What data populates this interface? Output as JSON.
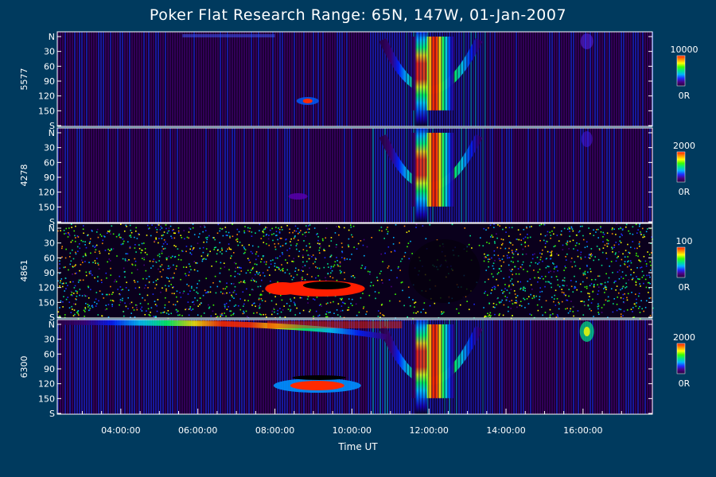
{
  "title": "Poker Flat Research Range: 65N, 147W, 01-Jan-2007",
  "colors": {
    "background": "#003a5e",
    "frame": "#ffffff",
    "text": "#ffffff",
    "colormap": [
      "#22003a",
      "#4b0082",
      "#1e2cff",
      "#00b4ff",
      "#00e68c",
      "#3cff00",
      "#ffff00",
      "#ff8c00",
      "#ff1e00"
    ]
  },
  "chart_data": {
    "type": "heatmap",
    "title": "Poker Flat Research Range: 65N, 147W, 01-Jan-2007",
    "xlabel": "Time UT",
    "x_ticks": [
      "04:00:00",
      "06:00:00",
      "08:00:00",
      "10:00:00",
      "12:00:00",
      "14:00:00",
      "16:00:00"
    ],
    "y_ticks": [
      "N",
      "30",
      "60",
      "90",
      "120",
      "150",
      "S"
    ],
    "panels": [
      {
        "ylabel": "5577",
        "colorbar_max": "10000",
        "colorbar_min": "0R"
      },
      {
        "ylabel": "4278",
        "colorbar_max": "2000",
        "colorbar_min": "0R"
      },
      {
        "ylabel": "4861",
        "colorbar_max": "100",
        "colorbar_min": "0R"
      },
      {
        "ylabel": "6300",
        "colorbar_max": "2000",
        "colorbar_min": "0R"
      }
    ]
  }
}
